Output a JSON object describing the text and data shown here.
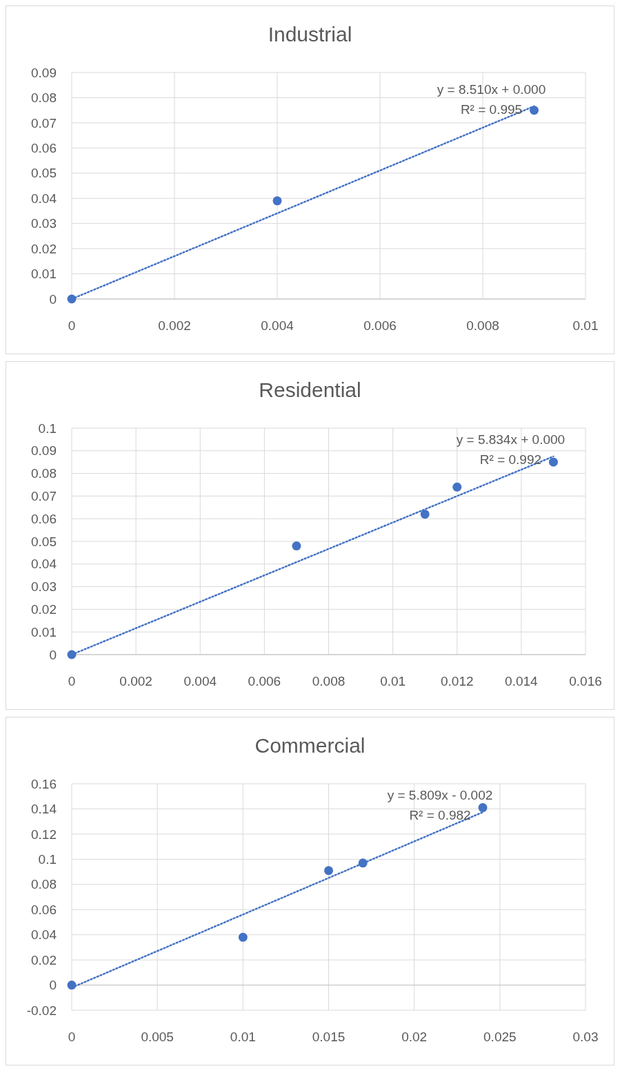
{
  "chart_data": [
    {
      "type": "scatter",
      "title": "Industrial",
      "xlim": [
        0,
        0.01
      ],
      "xticks": [
        0,
        0.002,
        0.004,
        0.006,
        0.008,
        0.01
      ],
      "ylim": [
        0,
        0.09
      ],
      "yticks": [
        0,
        0.01,
        0.02,
        0.03,
        0.04,
        0.05,
        0.06,
        0.07,
        0.08,
        0.09
      ],
      "grid": true,
      "marker": "circle",
      "annotations": [
        "y = 8.510x + 0.000",
        "R² = 0.995"
      ],
      "series": [
        {
          "color": "#4472c4",
          "x": [
            0,
            0.004,
            0.009
          ],
          "values": [
            0,
            0.039,
            0.075
          ]
        },
        {
          "type": "line",
          "color": "#4472c4",
          "line_style": "dotted",
          "marker": "none",
          "x": [
            0,
            0.009
          ],
          "values": [
            0,
            0.0766
          ]
        }
      ]
    },
    {
      "type": "scatter",
      "title": "Residential",
      "xlim": [
        0,
        0.016
      ],
      "xticks": [
        0,
        0.002,
        0.004,
        0.006,
        0.008,
        0.01,
        0.012,
        0.014,
        0.016
      ],
      "ylim": [
        0,
        0.1
      ],
      "yticks": [
        0,
        0.01,
        0.02,
        0.03,
        0.04,
        0.05,
        0.06,
        0.07,
        0.08,
        0.09,
        0.1
      ],
      "grid": true,
      "marker": "circle",
      "annotations": [
        "y = 5.834x + 0.000",
        "R² = 0.992"
      ],
      "series": [
        {
          "color": "#4472c4",
          "x": [
            0,
            0.007,
            0.011,
            0.012,
            0.015
          ],
          "values": [
            0,
            0.048,
            0.062,
            0.074,
            0.085
          ]
        },
        {
          "type": "line",
          "color": "#4472c4",
          "line_style": "dotted",
          "marker": "none",
          "x": [
            0,
            0.015
          ],
          "values": [
            0,
            0.0875
          ]
        }
      ]
    },
    {
      "type": "scatter",
      "title": "Commercial",
      "xlim": [
        0,
        0.03
      ],
      "xticks": [
        0,
        0.005,
        0.01,
        0.015,
        0.02,
        0.025,
        0.03
      ],
      "ylim": [
        -0.02,
        0.16
      ],
      "yticks": [
        -0.02,
        0,
        0.02,
        0.04,
        0.06,
        0.08,
        0.1,
        0.12,
        0.14,
        0.16
      ],
      "grid": true,
      "marker": "circle",
      "annotations": [
        "y = 5.809x - 0.002",
        "R² = 0.982"
      ],
      "series": [
        {
          "color": "#4472c4",
          "x": [
            0,
            0.01,
            0.015,
            0.017,
            0.024
          ],
          "values": [
            0,
            0.038,
            0.091,
            0.097,
            0.141
          ]
        },
        {
          "type": "line",
          "color": "#4472c4",
          "line_style": "dotted",
          "marker": "none",
          "x": [
            0,
            0.024
          ],
          "values": [
            -0.002,
            0.1374
          ]
        }
      ]
    }
  ]
}
